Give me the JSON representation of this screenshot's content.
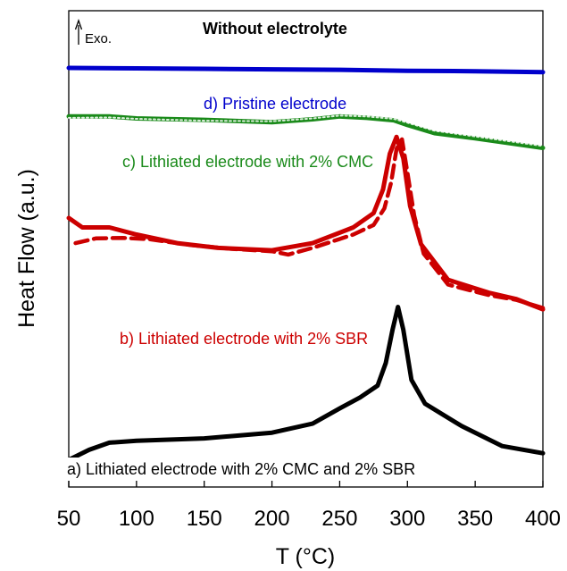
{
  "chart_data": {
    "type": "line",
    "title": "Without electrolyte",
    "xlabel": "T (°C)",
    "ylabel": "Heat Flow (a.u.)",
    "xlim": [
      50,
      400
    ],
    "ylim": [
      0,
      100
    ],
    "x_ticks": [
      50,
      100,
      150,
      200,
      250,
      300,
      350,
      400
    ],
    "y_ticks_shown": false,
    "grid": false,
    "annotation": "Exo.",
    "series": [
      {
        "name": "d) Pristine electrode",
        "color": "#0000cc",
        "style": "solid",
        "points": [
          [
            50,
            88.0
          ],
          [
            100,
            87.9
          ],
          [
            150,
            87.8
          ],
          [
            200,
            87.7
          ],
          [
            250,
            87.6
          ],
          [
            300,
            87.4
          ],
          [
            350,
            87.3
          ],
          [
            400,
            87.1
          ]
        ]
      },
      {
        "name": "c) Lithiated electrode with 2% CMC",
        "color": "#1a8a1a",
        "style": "solid",
        "points": [
          [
            50,
            77.8
          ],
          [
            80,
            77.8
          ],
          [
            100,
            77.4
          ],
          [
            150,
            77.1
          ],
          [
            200,
            76.6
          ],
          [
            230,
            77.2
          ],
          [
            250,
            77.8
          ],
          [
            270,
            77.5
          ],
          [
            290,
            77.0
          ],
          [
            300,
            76.0
          ],
          [
            320,
            74.3
          ],
          [
            350,
            73.2
          ],
          [
            400,
            71.2
          ]
        ]
      },
      {
        "name": "c) Lithiated electrode with 2% CMC (repeat)",
        "color": "#1a8a1a",
        "style": "dotted",
        "points": [
          [
            50,
            77.5
          ],
          [
            80,
            77.6
          ],
          [
            100,
            77.3
          ],
          [
            150,
            76.9
          ],
          [
            200,
            76.8
          ],
          [
            230,
            77.4
          ],
          [
            250,
            78.0
          ],
          [
            270,
            77.8
          ],
          [
            290,
            77.3
          ],
          [
            300,
            76.5
          ],
          [
            320,
            74.8
          ],
          [
            350,
            73.6
          ],
          [
            400,
            71.6
          ]
        ]
      },
      {
        "name": "b) Lithiated electrode with 2% SBR",
        "color": "#cc0000",
        "style": "solid",
        "points": [
          [
            50,
            56.5
          ],
          [
            60,
            54.5
          ],
          [
            80,
            54.5
          ],
          [
            100,
            53.0
          ],
          [
            130,
            51.2
          ],
          [
            160,
            50.2
          ],
          [
            200,
            49.7
          ],
          [
            230,
            51.2
          ],
          [
            260,
            54.5
          ],
          [
            275,
            57.5
          ],
          [
            282,
            62.5
          ],
          [
            287,
            70.0
          ],
          [
            292,
            73.5
          ],
          [
            297,
            69.0
          ],
          [
            302,
            59.0
          ],
          [
            310,
            51.0
          ],
          [
            330,
            43.5
          ],
          [
            360,
            40.8
          ],
          [
            380,
            39.5
          ],
          [
            400,
            37.3
          ]
        ]
      },
      {
        "name": "b) Lithiated electrode with 2% SBR (repeat)",
        "color": "#cc0000",
        "style": "dashed",
        "points": [
          [
            55,
            51.2
          ],
          [
            70,
            52.2
          ],
          [
            90,
            52.3
          ],
          [
            110,
            52.0
          ],
          [
            140,
            50.8
          ],
          [
            170,
            50.0
          ],
          [
            200,
            49.5
          ],
          [
            212,
            48.8
          ],
          [
            230,
            50.2
          ],
          [
            260,
            53.0
          ],
          [
            275,
            55.0
          ],
          [
            283,
            58.5
          ],
          [
            288,
            64.0
          ],
          [
            292,
            71.0
          ],
          [
            296,
            73.0
          ],
          [
            300,
            66.0
          ],
          [
            305,
            57.0
          ],
          [
            312,
            49.0
          ],
          [
            330,
            42.5
          ],
          [
            360,
            40.3
          ],
          [
            380,
            39.3
          ],
          [
            400,
            37.6
          ]
        ]
      },
      {
        "name": "a) Lithiated electrode with 2% CMC and 2% SBR",
        "color": "#000000",
        "style": "solid",
        "points": [
          [
            50,
            5.7
          ],
          [
            65,
            7.8
          ],
          [
            80,
            9.3
          ],
          [
            100,
            9.7
          ],
          [
            150,
            10.2
          ],
          [
            200,
            11.4
          ],
          [
            230,
            13.3
          ],
          [
            250,
            16.5
          ],
          [
            265,
            18.8
          ],
          [
            278,
            21.3
          ],
          [
            284,
            26.0
          ],
          [
            289,
            33.0
          ],
          [
            293,
            37.8
          ],
          [
            297,
            33.0
          ],
          [
            303,
            22.5
          ],
          [
            313,
            17.5
          ],
          [
            340,
            12.8
          ],
          [
            370,
            8.6
          ],
          [
            400,
            7.1
          ]
        ]
      }
    ],
    "series_labels": [
      {
        "text": "d) Pristine electrode",
        "color": "#0000cc"
      },
      {
        "text": "c) Lithiated electrode with 2% CMC",
        "color": "#1a8a1a"
      },
      {
        "text": "b) Lithiated electrode with 2% SBR",
        "color": "#cc0000"
      },
      {
        "text": "a) Lithiated electrode with 2% CMC and 2% SBR",
        "color": "#000000"
      }
    ]
  }
}
